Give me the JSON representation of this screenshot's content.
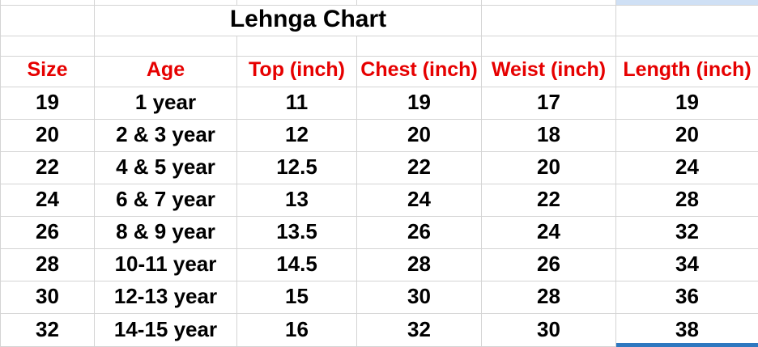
{
  "sheet": {
    "title": "Lehnga Chart",
    "columns": [
      "Size",
      "Age",
      "Top (inch)",
      "Chest (inch)",
      "Weist (inch)",
      "Length (inch)"
    ],
    "rows": [
      [
        "19",
        "1 year",
        "11",
        "19",
        "17",
        "19"
      ],
      [
        "20",
        "2 & 3 year",
        "12",
        "20",
        "18",
        "20"
      ],
      [
        "22",
        "4 & 5 year",
        "12.5",
        "22",
        "20",
        "24"
      ],
      [
        "24",
        "6 & 7 year",
        "13",
        "24",
        "22",
        "28"
      ],
      [
        "26",
        "8 & 9 year",
        "13.5",
        "26",
        "24",
        "32"
      ],
      [
        "28",
        "10-11 year",
        "14.5",
        "28",
        "26",
        "34"
      ],
      [
        "30",
        "12-13 year",
        "15",
        "30",
        "28",
        "36"
      ],
      [
        "32",
        "14-15 year",
        "16",
        "32",
        "30",
        "38"
      ]
    ],
    "colors": {
      "header_text": "#e60000",
      "body_text": "#000000",
      "gridline": "#d4d4d4",
      "selection_border": "#2e78c0",
      "selection_highlight": "#cfe0f5"
    }
  }
}
